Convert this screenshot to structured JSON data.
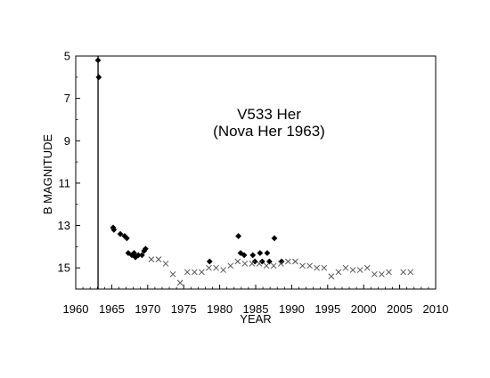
{
  "chart_data": {
    "type": "scatter",
    "title": "",
    "xlabel": "YEAR",
    "ylabel": "B MAGNITUDE",
    "annotation_lines": [
      "V533 Her",
      "(Nova Her 1963)"
    ],
    "xlim": [
      1960,
      2010
    ],
    "ylim": [
      5,
      16
    ],
    "y_inverted": true,
    "x_ticks": [
      1960,
      1965,
      1970,
      1975,
      1980,
      1985,
      1990,
      1995,
      2000,
      2005,
      2010
    ],
    "y_ticks": [
      5,
      7,
      9,
      11,
      13,
      15
    ],
    "x_tick_labels": [
      "1960",
      "1965",
      "1970",
      "1975",
      "1980",
      "1985",
      "1990",
      "1995",
      "2000",
      "2005",
      "2010"
    ],
    "y_tick_labels": [
      "5",
      "7",
      "9",
      "11",
      "13",
      "15"
    ],
    "grid": false,
    "legend": "none",
    "vertical_line_x": 1963.1,
    "colors": {
      "axes": "#000000",
      "diamond_marker": "#000000",
      "cross_marker": "#555555"
    },
    "series": [
      {
        "marker": "diamond",
        "points": [
          [
            1963.1,
            5.2
          ],
          [
            1963.2,
            6.0
          ],
          [
            1965.2,
            13.1
          ],
          [
            1965.3,
            13.2
          ],
          [
            1966.2,
            13.4
          ],
          [
            1966.8,
            13.5
          ],
          [
            1967.1,
            13.6
          ],
          [
            1967.3,
            14.3
          ],
          [
            1967.8,
            14.4
          ],
          [
            1968.1,
            14.3
          ],
          [
            1968.3,
            14.5
          ],
          [
            1968.7,
            14.4
          ],
          [
            1969.2,
            14.4
          ],
          [
            1969.5,
            14.2
          ],
          [
            1969.7,
            14.1
          ],
          [
            1978.6,
            14.7
          ],
          [
            1982.6,
            13.5
          ],
          [
            1982.9,
            14.3
          ],
          [
            1983.4,
            14.4
          ],
          [
            1984.6,
            14.4
          ],
          [
            1984.9,
            14.7
          ],
          [
            1985.6,
            14.3
          ],
          [
            1985.9,
            14.7
          ],
          [
            1986.6,
            14.3
          ],
          [
            1986.9,
            14.7
          ],
          [
            1987.6,
            13.6
          ],
          [
            1988.6,
            14.7
          ]
        ]
      },
      {
        "marker": "cross",
        "points": [
          [
            1970.5,
            14.6
          ],
          [
            1971.5,
            14.6
          ],
          [
            1972.5,
            14.8
          ],
          [
            1973.5,
            15.3
          ],
          [
            1974.5,
            15.7
          ],
          [
            1975.5,
            15.2
          ],
          [
            1976.5,
            15.2
          ],
          [
            1977.5,
            15.2
          ],
          [
            1978.5,
            15.0
          ],
          [
            1979.5,
            15.0
          ],
          [
            1980.5,
            15.1
          ],
          [
            1981.5,
            14.9
          ],
          [
            1982.5,
            14.7
          ],
          [
            1983.5,
            14.8
          ],
          [
            1984.5,
            14.8
          ],
          [
            1985.5,
            14.8
          ],
          [
            1986.5,
            14.9
          ],
          [
            1987.5,
            14.9
          ],
          [
            1988.5,
            14.8
          ],
          [
            1989.5,
            14.7
          ],
          [
            1990.5,
            14.7
          ],
          [
            1991.5,
            14.9
          ],
          [
            1992.5,
            14.9
          ],
          [
            1993.5,
            15.0
          ],
          [
            1994.5,
            15.0
          ],
          [
            1995.5,
            15.4
          ],
          [
            1996.5,
            15.2
          ],
          [
            1997.5,
            15.0
          ],
          [
            1998.5,
            15.1
          ],
          [
            1999.5,
            15.1
          ],
          [
            2000.5,
            15.0
          ],
          [
            2001.5,
            15.3
          ],
          [
            2002.5,
            15.3
          ],
          [
            2003.5,
            15.2
          ],
          [
            2005.5,
            15.2
          ],
          [
            2006.5,
            15.2
          ]
        ]
      }
    ]
  }
}
